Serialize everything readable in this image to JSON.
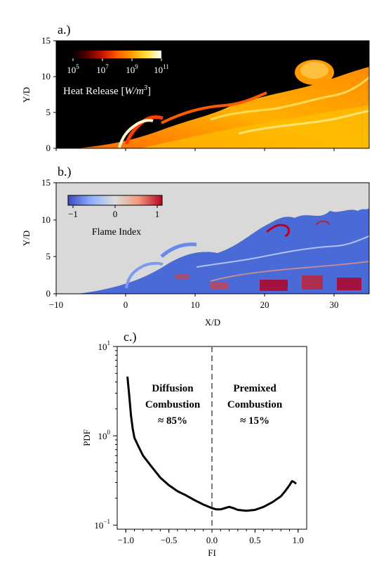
{
  "chart_data": [
    {
      "type": "heatmap",
      "panel_label": "a.)",
      "quantity": "Heat Release",
      "colorbar": {
        "label": "Heat Release [W/m3]",
        "label_parts": {
          "text": "Heat Release [",
          "var": "W/m",
          "exp": "3",
          "close": "]"
        },
        "scale": "log",
        "range": [
          100000,
          100000000000
        ],
        "ticks": [
          {
            "base": "10",
            "exp": "5"
          },
          {
            "base": "10",
            "exp": "7"
          },
          {
            "base": "10",
            "exp": "9"
          },
          {
            "base": "10",
            "exp": "11"
          }
        ],
        "colors": [
          "#000000",
          "#5a0000",
          "#c81400",
          "#ff5a00",
          "#ffa000",
          "#ffe040",
          "#ffffff"
        ]
      },
      "ylabel": "Y/D",
      "xlim": [
        -10,
        35
      ],
      "ylim": [
        0,
        15
      ],
      "yticks": [
        "0",
        "5",
        "10",
        "15"
      ]
    },
    {
      "type": "heatmap",
      "panel_label": "b.)",
      "quantity": "Flame Index",
      "colorbar": {
        "label": "Flame Index",
        "range": [
          -1,
          1
        ],
        "ticks": [
          "−1",
          "0",
          "1"
        ],
        "colors": [
          "#3b4cc0",
          "#8fb0fe",
          "#dddddd",
          "#f4987a",
          "#b40426"
        ]
      },
      "background": "#d9d9d9",
      "xlabel": "X/D",
      "ylabel": "Y/D",
      "xlim": [
        -10,
        35
      ],
      "ylim": [
        0,
        15
      ],
      "xticks": [
        "−10",
        "0",
        "10",
        "20",
        "30"
      ],
      "yticks": [
        "0",
        "5",
        "10",
        "15"
      ]
    },
    {
      "type": "line",
      "panel_label": "c.)",
      "xlabel": "FI",
      "ylabel": "PDF",
      "yscale": "log",
      "xlim": [
        -1.1,
        1.1
      ],
      "ylim": [
        0.09,
        10
      ],
      "xticks": [
        "−1.0",
        "−0.5",
        "0.0",
        "0.5",
        "1.0"
      ],
      "yticks": [
        {
          "base": "10",
          "exp": "−1",
          "value": 0.1
        },
        {
          "base": "10",
          "exp": "0",
          "value": 1
        },
        {
          "base": "10",
          "exp": "1",
          "value": 10
        }
      ],
      "vline_x": 0,
      "annotations": [
        {
          "lines": [
            "Diffusion",
            "Combustion",
            "≈ 85%"
          ]
        },
        {
          "lines": [
            "Premixed",
            "Combustion",
            "≈ 15%"
          ]
        }
      ],
      "series": [
        {
          "x": [
            -0.98,
            -0.96,
            -0.94,
            -0.92,
            -0.9,
            -0.85,
            -0.8,
            -0.7,
            -0.6,
            -0.5,
            -0.4,
            -0.3,
            -0.2,
            -0.1,
            0.0,
            0.05,
            0.1,
            0.15,
            0.2,
            0.25,
            0.3,
            0.4,
            0.5,
            0.6,
            0.7,
            0.8,
            0.85,
            0.9,
            0.93,
            0.95,
            0.97
          ],
          "y": [
            4.5,
            2.8,
            1.7,
            1.2,
            0.95,
            0.75,
            0.6,
            0.45,
            0.34,
            0.28,
            0.24,
            0.215,
            0.19,
            0.17,
            0.155,
            0.15,
            0.15,
            0.155,
            0.16,
            0.155,
            0.148,
            0.145,
            0.148,
            0.16,
            0.18,
            0.21,
            0.24,
            0.28,
            0.31,
            0.305,
            0.295
          ]
        }
      ]
    }
  ]
}
